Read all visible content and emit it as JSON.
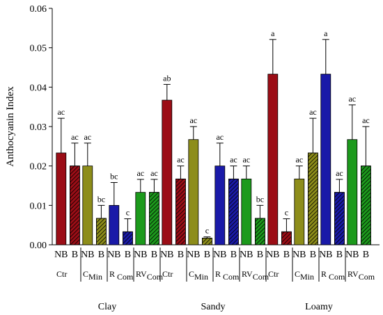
{
  "chart_data": {
    "type": "bar",
    "ylabel": "Anthocyanin Index",
    "xlabel": "",
    "ylim": [
      0,
      0.06
    ],
    "yticks": [
      "0.00",
      "0.01",
      "0.02",
      "0.03",
      "0.04",
      "0.05",
      "0.06"
    ],
    "yticks_values": [
      0,
      0.01,
      0.02,
      0.03,
      0.04,
      0.05,
      0.06
    ],
    "grid": false,
    "legend": "none",
    "colors": {
      "Ctr": "#9b0d16",
      "CMin": "#8d8d1a",
      "RCom": "#1a1aa8",
      "RVCom": "#1c9a1c"
    },
    "soils": [
      "Clay",
      "Sandy",
      "Loamy"
    ],
    "treatments": [
      {
        "key": "Ctr",
        "label": "Ctr",
        "sub": ""
      },
      {
        "key": "CMin",
        "label": "C",
        "sub": "Min"
      },
      {
        "key": "RCom",
        "label": "R ",
        "sub": "Com"
      },
      {
        "key": "RVCom",
        "label": "RV",
        "sub": "Com"
      }
    ],
    "biochar_labels": [
      "NB",
      "B"
    ],
    "bars": [
      {
        "soil": "Clay",
        "treatment": "Ctr",
        "biochar": "NB",
        "value": 0.0233,
        "error": 0.0088,
        "letter": "ac"
      },
      {
        "soil": "Clay",
        "treatment": "Ctr",
        "biochar": "B",
        "value": 0.02,
        "error": 0.0058,
        "letter": "ac"
      },
      {
        "soil": "Clay",
        "treatment": "CMin",
        "biochar": "NB",
        "value": 0.02,
        "error": 0.0058,
        "letter": "ac"
      },
      {
        "soil": "Clay",
        "treatment": "CMin",
        "biochar": "B",
        "value": 0.0067,
        "error": 0.0033,
        "letter": "bc"
      },
      {
        "soil": "Clay",
        "treatment": "RCom",
        "biochar": "NB",
        "value": 0.01,
        "error": 0.0058,
        "letter": "bc"
      },
      {
        "soil": "Clay",
        "treatment": "RCom",
        "biochar": "B",
        "value": 0.0033,
        "error": 0.0033,
        "letter": "c"
      },
      {
        "soil": "Clay",
        "treatment": "RVCom",
        "biochar": "NB",
        "value": 0.0133,
        "error": 0.0033,
        "letter": "ac"
      },
      {
        "soil": "Clay",
        "treatment": "RVCom",
        "biochar": "B",
        "value": 0.0133,
        "error": 0.0033,
        "letter": "ac"
      },
      {
        "soil": "Sandy",
        "treatment": "Ctr",
        "biochar": "NB",
        "value": 0.0367,
        "error": 0.004,
        "letter": "ab"
      },
      {
        "soil": "Sandy",
        "treatment": "Ctr",
        "biochar": "B",
        "value": 0.0167,
        "error": 0.0033,
        "letter": "ac"
      },
      {
        "soil": "Sandy",
        "treatment": "CMin",
        "biochar": "NB",
        "value": 0.0267,
        "error": 0.0033,
        "letter": "ac"
      },
      {
        "soil": "Sandy",
        "treatment": "CMin",
        "biochar": "B",
        "value": 0.0017,
        "error": 0.0003,
        "letter": "c"
      },
      {
        "soil": "Sandy",
        "treatment": "RCom",
        "biochar": "NB",
        "value": 0.02,
        "error": 0.0058,
        "letter": "ac"
      },
      {
        "soil": "Sandy",
        "treatment": "RCom",
        "biochar": "B",
        "value": 0.0167,
        "error": 0.0033,
        "letter": "ac"
      },
      {
        "soil": "Sandy",
        "treatment": "RVCom",
        "biochar": "NB",
        "value": 0.0167,
        "error": 0.0033,
        "letter": "ac"
      },
      {
        "soil": "Sandy",
        "treatment": "RVCom",
        "biochar": "B",
        "value": 0.0067,
        "error": 0.0033,
        "letter": "bc"
      },
      {
        "soil": "Loamy",
        "treatment": "Ctr",
        "biochar": "NB",
        "value": 0.0433,
        "error": 0.0088,
        "letter": "a"
      },
      {
        "soil": "Loamy",
        "treatment": "Ctr",
        "biochar": "B",
        "value": 0.0033,
        "error": 0.0033,
        "letter": "c"
      },
      {
        "soil": "Loamy",
        "treatment": "CMin",
        "biochar": "NB",
        "value": 0.0167,
        "error": 0.0033,
        "letter": "ac"
      },
      {
        "soil": "Loamy",
        "treatment": "CMin",
        "biochar": "B",
        "value": 0.0233,
        "error": 0.0088,
        "letter": "ac"
      },
      {
        "soil": "Loamy",
        "treatment": "RCom",
        "biochar": "NB",
        "value": 0.0433,
        "error": 0.0088,
        "letter": "a"
      },
      {
        "soil": "Loamy",
        "treatment": "RCom",
        "biochar": "B",
        "value": 0.0133,
        "error": 0.0033,
        "letter": "ac"
      },
      {
        "soil": "Loamy",
        "treatment": "RVCom",
        "biochar": "NB",
        "value": 0.0267,
        "error": 0.0088,
        "letter": "ac"
      },
      {
        "soil": "Loamy",
        "treatment": "RVCom",
        "biochar": "B",
        "value": 0.02,
        "error": 0.01,
        "letter": "ac"
      }
    ]
  }
}
